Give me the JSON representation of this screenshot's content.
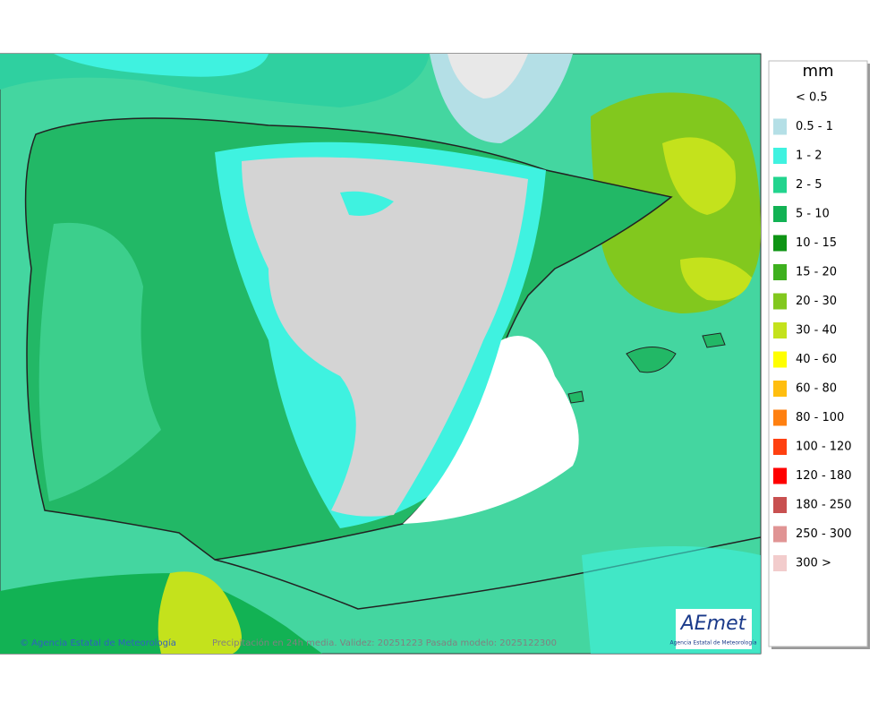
{
  "footer": {
    "credit": "© Agencia Estatal de Meteorología",
    "caption": "Precipitación en 24h media. Validez: 20251223 Pasada modelo: 2025122300"
  },
  "logo": {
    "name": "AEmet",
    "subtitle": "Agencia Estatal de Meteorología"
  },
  "legend": {
    "title": "mm",
    "items": [
      {
        "label": "< 0.5",
        "color": null
      },
      {
        "label": "0.5 - 1",
        "color": "#b4dfe6"
      },
      {
        "label": "1 - 2",
        "color": "#3ff2e0"
      },
      {
        "label": "2 - 5",
        "color": "#22d48e"
      },
      {
        "label": "5 - 10",
        "color": "#12b254"
      },
      {
        "label": "10 - 15",
        "color": "#0e9414"
      },
      {
        "label": "15 - 20",
        "color": "#3eb01e"
      },
      {
        "label": "20 - 30",
        "color": "#82c81e"
      },
      {
        "label": "30 - 40",
        "color": "#c4e21c"
      },
      {
        "label": "40 - 60",
        "color": "#ffff00"
      },
      {
        "label": "60 - 80",
        "color": "#ffbe10"
      },
      {
        "label": "80 - 100",
        "color": "#ff8010"
      },
      {
        "label": "100 - 120",
        "color": "#ff4010"
      },
      {
        "label": "120 - 180",
        "color": "#ff0000"
      },
      {
        "label": "180 - 250",
        "color": "#c85050"
      },
      {
        "label": "250 - 300",
        "color": "#e09494"
      },
      {
        "label": "300 >",
        "color": "#f2cccc"
      }
    ]
  }
}
